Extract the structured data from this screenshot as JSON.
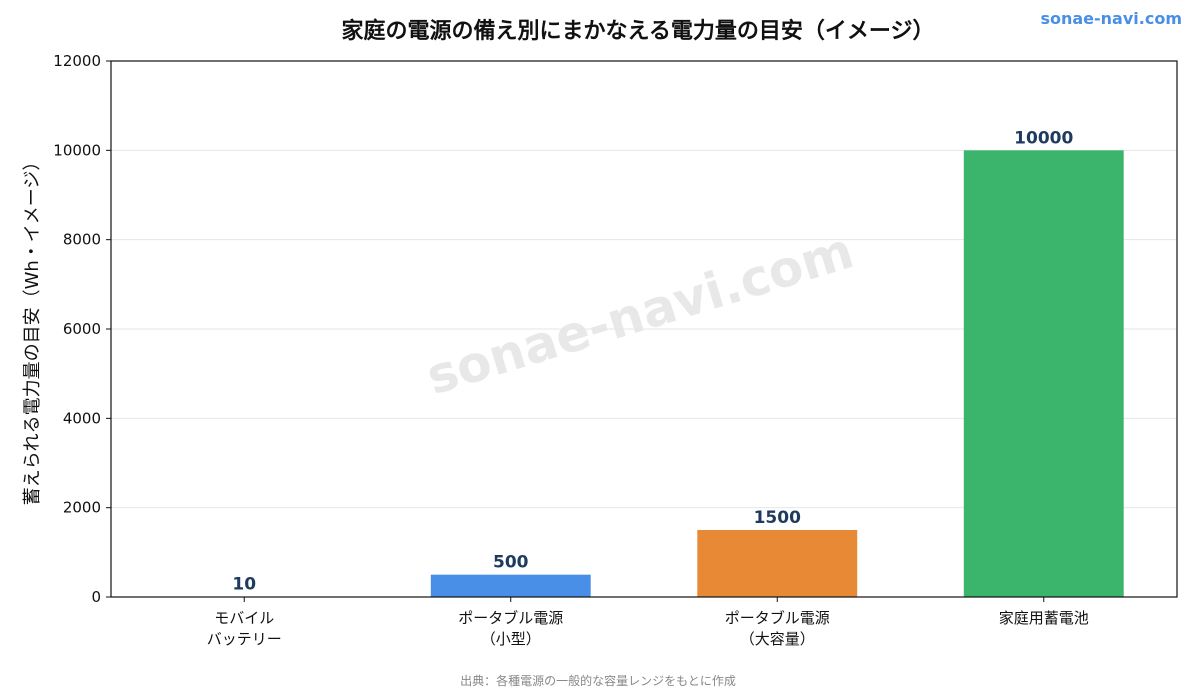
{
  "header": {
    "title": "家庭の電源の備え別にまかなえる電力量の目安（イメージ）",
    "brand": "sonae-navi.com"
  },
  "watermark": "sonae-navi.com",
  "footer": {
    "source": "出典：各種電源の一般的な容量レンジをもとに作成"
  },
  "chart_data": {
    "type": "bar",
    "title": "家庭の電源の備え別にまかなえる電力量の目安（イメージ）",
    "xlabel": "",
    "ylabel": "蓄えられる電力量の目安（Wh・イメージ）",
    "ylim": [
      0,
      12000
    ],
    "yticks": [
      0,
      2000,
      4000,
      6000,
      8000,
      10000,
      12000
    ],
    "grid": true,
    "categories": [
      [
        "モバイル",
        "バッテリー"
      ],
      [
        "ポータブル電源",
        "（小型）"
      ],
      [
        "ポータブル電源",
        "（大容量）"
      ],
      [
        "家庭用蓄電池"
      ]
    ],
    "values": [
      10,
      500,
      1500,
      10000
    ],
    "colors": [
      "#555555",
      "#4a8fe7",
      "#e88a35",
      "#3bb56c"
    ]
  }
}
